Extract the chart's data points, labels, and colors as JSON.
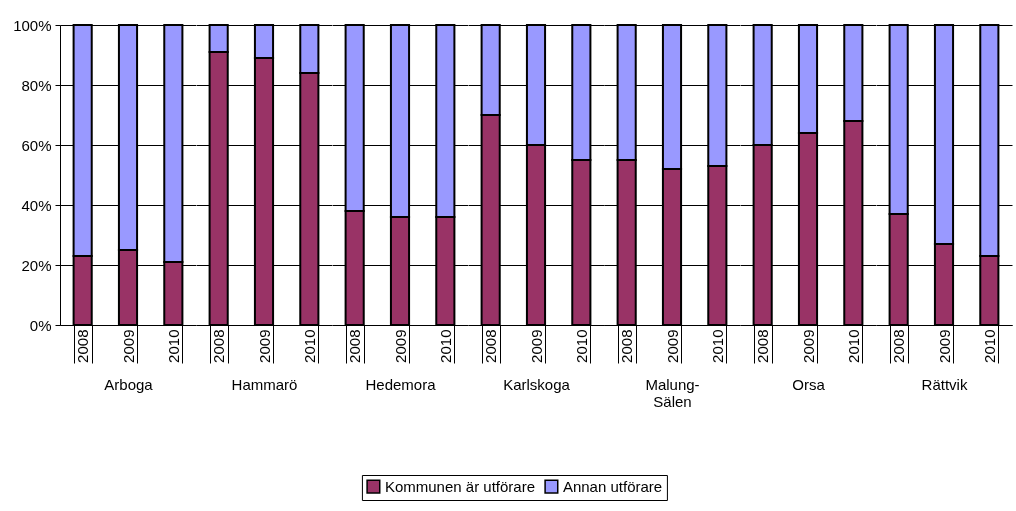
{
  "chart_data": [
    {
      "type": "bar",
      "stacked": true,
      "categories": [
        "2008",
        "2009",
        "2010"
      ],
      "xlabel": "Arboga",
      "ylim": [
        0,
        100
      ],
      "yticks": [
        {
          "value": 0,
          "label": "0%"
        },
        {
          "value": 20,
          "label": "20%"
        },
        {
          "value": 40,
          "label": "40%"
        },
        {
          "value": 60,
          "label": "60%"
        },
        {
          "value": 80,
          "label": "80%"
        },
        {
          "value": 100,
          "label": "100%"
        }
      ],
      "grid": "y",
      "series": [
        {
          "color": "#993366",
          "values": [
            23,
            25,
            21
          ]
        },
        {
          "color": "#9999ff",
          "values": [
            77,
            75,
            79
          ]
        }
      ]
    },
    {
      "type": "bar",
      "stacked": true,
      "categories": [
        "2008",
        "2009",
        "2010"
      ],
      "xlabel": "Hammarö",
      "ylim": [
        0,
        100
      ],
      "yticks": [
        {
          "value": 0,
          "label": null
        },
        {
          "value": 20,
          "label": null
        },
        {
          "value": 40,
          "label": null
        },
        {
          "value": 60,
          "label": null
        },
        {
          "value": 80,
          "label": null
        },
        {
          "value": 100,
          "label": null
        }
      ],
      "grid": "y",
      "tick_labels": "x",
      "series": [
        {
          "color": "#993366",
          "values": [
            91,
            89,
            84
          ]
        },
        {
          "color": "#9999ff",
          "values": [
            9,
            11,
            16
          ]
        }
      ]
    },
    {
      "type": "bar",
      "stacked": true,
      "categories": [
        "2008",
        "2009",
        "2010"
      ],
      "xlabel": "Hedemora",
      "ylim": [
        0,
        100
      ],
      "yticks": [
        {
          "value": 0,
          "label": null
        },
        {
          "value": 20,
          "label": null
        },
        {
          "value": 40,
          "label": null
        },
        {
          "value": 60,
          "label": null
        },
        {
          "value": 80,
          "label": null
        },
        {
          "value": 100,
          "label": null
        }
      ],
      "grid": "y",
      "tick_labels": "x",
      "series": [
        {
          "color": "#993366",
          "values": [
            38,
            36,
            36
          ]
        },
        {
          "color": "#9999ff",
          "values": [
            62,
            64,
            64
          ]
        }
      ]
    },
    {
      "type": "bar",
      "stacked": true,
      "categories": [
        "2008",
        "2009",
        "2010"
      ],
      "xlabel": "Karlskoga",
      "ylim": [
        0,
        100
      ],
      "yticks": [
        {
          "value": 0,
          "label": null
        },
        {
          "value": 20,
          "label": null
        },
        {
          "value": 40,
          "label": null
        },
        {
          "value": 60,
          "label": null
        },
        {
          "value": 80,
          "label": null
        },
        {
          "value": 100,
          "label": null
        }
      ],
      "grid": "y",
      "legend": "bottom",
      "tick_labels": "x",
      "series": [
        {
          "name": "Kommunen är utförare",
          "color": "#993366",
          "values": [
            70,
            60,
            55
          ]
        },
        {
          "name": "Annan utförare",
          "color": "#9999ff",
          "values": [
            30,
            40,
            45
          ]
        }
      ]
    },
    {
      "type": "bar",
      "stacked": true,
      "categories": [
        "2008",
        "2009",
        "2010"
      ],
      "xlabel": "Malung-Sälen",
      "ylim": [
        0,
        100
      ],
      "yticks": [
        {
          "value": 0,
          "label": null
        },
        {
          "value": 20,
          "label": null
        },
        {
          "value": 40,
          "label": null
        },
        {
          "value": 60,
          "label": null
        },
        {
          "value": 80,
          "label": null
        },
        {
          "value": 100,
          "label": null
        }
      ],
      "grid": "y",
      "tick_labels": "x",
      "series": [
        {
          "color": "#993366",
          "values": [
            55,
            52,
            53
          ]
        },
        {
          "color": "#9999ff",
          "values": [
            45,
            48,
            47
          ]
        }
      ]
    },
    {
      "type": "bar",
      "stacked": true,
      "categories": [
        "2008",
        "2009",
        "2010"
      ],
      "xlabel": "Orsa",
      "ylim": [
        0,
        100
      ],
      "yticks": [
        {
          "value": 0,
          "label": null
        },
        {
          "value": 20,
          "label": null
        },
        {
          "value": 40,
          "label": null
        },
        {
          "value": 60,
          "label": null
        },
        {
          "value": 80,
          "label": null
        },
        {
          "value": 100,
          "label": null
        }
      ],
      "grid": "y",
      "tick_labels": "x",
      "series": [
        {
          "color": "#993366",
          "values": [
            60,
            64,
            68
          ]
        },
        {
          "color": "#9999ff",
          "values": [
            40,
            36,
            32
          ]
        }
      ]
    },
    {
      "type": "bar",
      "stacked": true,
      "categories": [
        "2008",
        "2009",
        "2010"
      ],
      "xlabel": "Rättvik",
      "ylim": [
        0,
        100
      ],
      "yticks": [
        {
          "value": 0,
          "label": null
        },
        {
          "value": 20,
          "label": null
        },
        {
          "value": 40,
          "label": null
        },
        {
          "value": 60,
          "label": null
        },
        {
          "value": 80,
          "label": null
        },
        {
          "value": 100,
          "label": null
        }
      ],
      "grid": "y",
      "tick_labels": "x",
      "series": [
        {
          "color": "#993366",
          "values": [
            37,
            27,
            23
          ]
        },
        {
          "color": "#9999ff",
          "values": [
            63,
            73,
            77
          ]
        }
      ]
    }
  ]
}
